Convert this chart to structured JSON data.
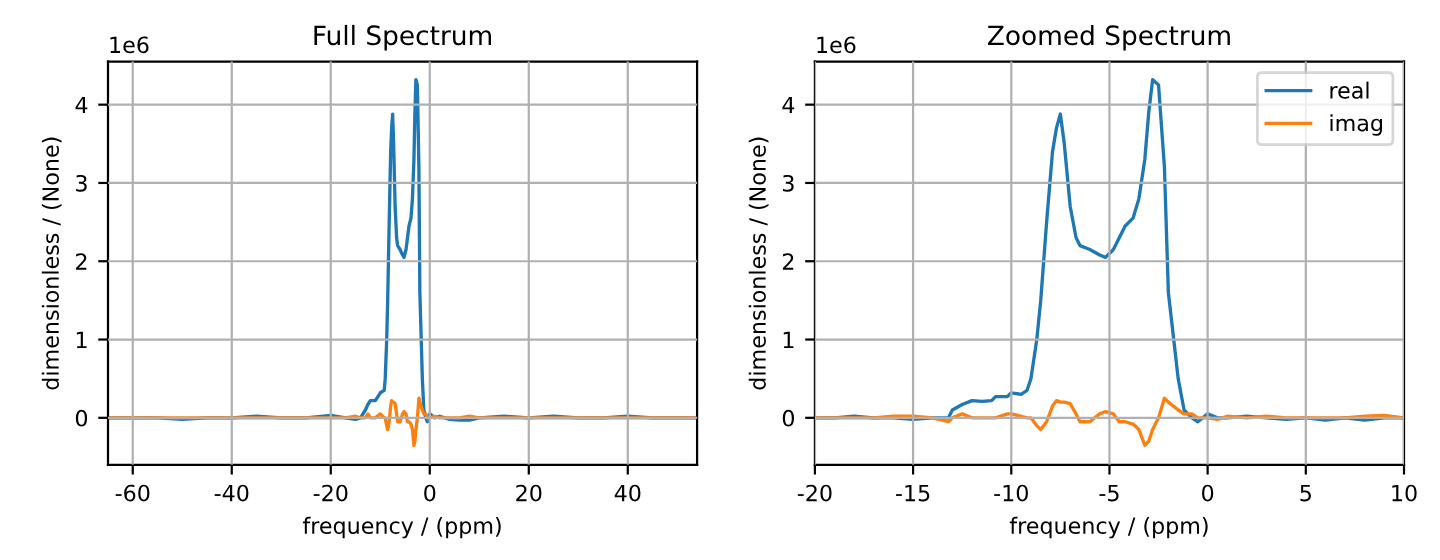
{
  "chart_data": [
    {
      "type": "line",
      "title": "Full Spectrum",
      "xlabel": "frequency / (ppm)",
      "ylabel": "dimensionless / (None)",
      "annotations": [
        "1e6"
      ],
      "xlim": [
        -65,
        54
      ],
      "xticks": [
        -60,
        -40,
        -20,
        0,
        20,
        40
      ],
      "ylim": [
        -0.6,
        4.55
      ],
      "yticks": [
        0,
        1,
        2,
        3,
        4
      ],
      "grid": true,
      "legend": false,
      "x": [
        -65,
        -60,
        -55,
        -50,
        -45,
        -40,
        -35,
        -30,
        -25,
        -20,
        -17,
        -15,
        -14,
        -13,
        -12.5,
        -12,
        -11,
        -10,
        -9.2,
        -9,
        -8.7,
        -8.5,
        -8.2,
        -7.9,
        -7.7,
        -7.5,
        -7.3,
        -7.0,
        -6.7,
        -6.5,
        -6,
        -5.5,
        -5.2,
        -4.8,
        -4.5,
        -4.2,
        -3.8,
        -3.5,
        -3.2,
        -3.0,
        -2.8,
        -2.5,
        -2.2,
        -2.0,
        -1.5,
        -1.2,
        -0.8,
        -0.5,
        0,
        1,
        2,
        4,
        6,
        8,
        10,
        15,
        20,
        25,
        30,
        35,
        40,
        45,
        50,
        54
      ],
      "series": [
        {
          "color": "#1f77b4",
          "values": [
            0,
            0,
            0,
            -0.02,
            0,
            0,
            0.02,
            0,
            0,
            0.03,
            0,
            -0.02,
            0,
            0.1,
            0.17,
            0.22,
            0.22,
            0.32,
            0.35,
            0.5,
            1.0,
            1.5,
            2.5,
            3.4,
            3.7,
            3.88,
            3.5,
            2.7,
            2.3,
            2.2,
            2.15,
            2.08,
            2.05,
            2.15,
            2.3,
            2.45,
            2.55,
            2.8,
            3.3,
            3.9,
            4.32,
            4.25,
            3.2,
            1.6,
            0.5,
            0.1,
            0.0,
            -0.05,
            0.05,
            0,
            0.02,
            -0.02,
            -0.03,
            -0.03,
            0,
            0.02,
            0,
            0.02,
            0,
            0,
            0.02,
            0,
            0,
            0
          ]
        },
        {
          "color": "#ff7f0e",
          "values": [
            0,
            0,
            0,
            0,
            0,
            0,
            0,
            0,
            0,
            0,
            0,
            0.02,
            0,
            0,
            0.05,
            0,
            0,
            0.05,
            0,
            0,
            -0.1,
            -0.15,
            -0.05,
            0.15,
            0.22,
            0.2,
            0.2,
            0.18,
            0.05,
            -0.05,
            -0.05,
            0.05,
            0.08,
            0.05,
            -0.05,
            -0.05,
            -0.08,
            -0.15,
            -0.35,
            -0.3,
            -0.15,
            0,
            0.25,
            0.2,
            0.1,
            0.05,
            0.05,
            0,
            0,
            0.02,
            0,
            0,
            0,
            0.02,
            0,
            0,
            0,
            0,
            0,
            0,
            0,
            0,
            0,
            0
          ]
        }
      ]
    },
    {
      "type": "line",
      "title": "Zoomed Spectrum",
      "xlabel": "frequency / (ppm)",
      "ylabel": "dimensionless / (None)",
      "annotations": [
        "1e6"
      ],
      "xlim": [
        -20,
        10
      ],
      "xticks": [
        -20,
        -15,
        -10,
        -5,
        0,
        5,
        10
      ],
      "ylim": [
        -0.6,
        4.55
      ],
      "yticks": [
        0,
        1,
        2,
        3,
        4
      ],
      "grid": true,
      "legend": "top right",
      "x": [
        -20,
        -19,
        -18,
        -17,
        -16,
        -15,
        -14,
        -13.2,
        -13,
        -12.5,
        -12,
        -11.5,
        -11,
        -10.8,
        -10.2,
        -10,
        -9.5,
        -9.2,
        -9,
        -8.7,
        -8.5,
        -8.2,
        -7.9,
        -7.7,
        -7.5,
        -7.3,
        -7.0,
        -6.7,
        -6.5,
        -6,
        -5.5,
        -5.2,
        -4.8,
        -4.5,
        -4.2,
        -3.8,
        -3.5,
        -3.2,
        -3.0,
        -2.8,
        -2.5,
        -2.2,
        -2.0,
        -1.5,
        -1.2,
        -0.8,
        -0.5,
        0,
        0.5,
        1,
        2,
        3,
        4,
        5,
        6,
        7,
        8,
        9,
        10
      ],
      "series": [
        {
          "name": "real",
          "color": "#1f77b4",
          "values": [
            0,
            0,
            0.02,
            0,
            0,
            -0.02,
            0,
            0,
            0.1,
            0.17,
            0.22,
            0.21,
            0.22,
            0.27,
            0.27,
            0.32,
            0.3,
            0.35,
            0.5,
            1.0,
            1.5,
            2.5,
            3.4,
            3.7,
            3.88,
            3.5,
            2.7,
            2.3,
            2.2,
            2.15,
            2.08,
            2.05,
            2.15,
            2.3,
            2.45,
            2.55,
            2.8,
            3.3,
            3.9,
            4.32,
            4.25,
            3.2,
            1.6,
            0.5,
            0.1,
            0.0,
            -0.05,
            0.05,
            0,
            0,
            0.02,
            0,
            -0.02,
            0,
            -0.03,
            0,
            -0.03,
            0,
            0
          ]
        },
        {
          "name": "imag",
          "color": "#ff7f0e",
          "values": [
            0,
            0,
            0,
            0,
            0.02,
            0.02,
            0,
            -0.05,
            0,
            0.05,
            0,
            0,
            0,
            0,
            0.05,
            0.05,
            0.02,
            0,
            0,
            -0.1,
            -0.15,
            -0.05,
            0.15,
            0.22,
            0.2,
            0.2,
            0.18,
            0.05,
            -0.05,
            -0.05,
            0.05,
            0.08,
            0.05,
            -0.05,
            -0.05,
            -0.08,
            -0.15,
            -0.35,
            -0.3,
            -0.15,
            0,
            0.25,
            0.2,
            0.1,
            0.05,
            0.05,
            0,
            0,
            -0.02,
            0.02,
            0,
            0.02,
            0,
            0,
            0,
            0,
            0.02,
            0.03,
            0
          ]
        }
      ]
    }
  ]
}
